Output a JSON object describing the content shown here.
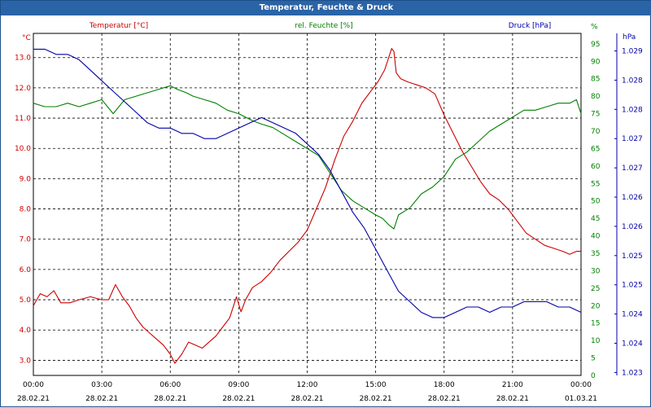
{
  "window": {
    "title": "Temperatur, Feuchte & Druck"
  },
  "colors": {
    "temperature": "#cc0000",
    "humidity": "#008000",
    "pressure": "#0000aa",
    "grid": "#000000",
    "title_bar": "#2a64a6",
    "axis": "#000000"
  },
  "chart_data": {
    "type": "line",
    "title": "Temperatur, Feuchte & Druck",
    "grid": true,
    "x_axis": {
      "ticks": [
        {
          "time": "00:00",
          "date": "28.02.21"
        },
        {
          "time": "03:00",
          "date": "28.02.21"
        },
        {
          "time": "06:00",
          "date": "28.02.21"
        },
        {
          "time": "09:00",
          "date": "28.02.21"
        },
        {
          "time": "12:00",
          "date": "28.02.21"
        },
        {
          "time": "15:00",
          "date": "28.02.21"
        },
        {
          "time": "18:00",
          "date": "28.02.21"
        },
        {
          "time": "21:00",
          "date": "28.02.21"
        },
        {
          "time": "00:00",
          "date": "01.03.21"
        }
      ],
      "range_hours": [
        0,
        24
      ]
    },
    "axes": {
      "temperature": {
        "label": "Temperatur [°C]",
        "unit": "°C",
        "ylim": [
          2.5,
          13.8
        ],
        "ticks": [
          "3.0",
          "4.0",
          "5.0",
          "6.0",
          "7.0",
          "8.0",
          "9.0",
          "10.0",
          "11.0",
          "12.0",
          "13.0"
        ]
      },
      "humidity": {
        "label": "rel. Feuchte [%]",
        "unit": "%",
        "ylim": [
          0,
          98
        ],
        "ticks": [
          "0",
          "5",
          "10",
          "15",
          "20",
          "25",
          "30",
          "35",
          "40",
          "45",
          "50",
          "55",
          "60",
          "65",
          "70",
          "75",
          "80",
          "85",
          "90",
          "95",
          "%"
        ]
      },
      "pressure": {
        "label": "Druck [hPa]",
        "unit": "hPa",
        "ylim": [
          1.023,
          1.0295
        ],
        "ticks": [
          "1.023",
          "1.024",
          "1.024",
          "1.025",
          "1.025",
          "1.026",
          "1.026",
          "1.027",
          "1.027",
          "1.028",
          "1.028",
          "1.029"
        ]
      }
    },
    "series": [
      {
        "name": "Temperatur [°C]",
        "axis": "temperature",
        "x": [
          0,
          0.3,
          0.6,
          0.9,
          1.2,
          1.6,
          2,
          2.5,
          3,
          3.3,
          3.6,
          3.9,
          4.2,
          4.5,
          4.8,
          5.1,
          5.4,
          5.7,
          6,
          6.2,
          6.5,
          6.8,
          7.1,
          7.4,
          7.7,
          8,
          8.3,
          8.6,
          8.9,
          9.1,
          9.3,
          9.6,
          10,
          10.4,
          10.8,
          11.2,
          11.6,
          12,
          12.4,
          12.8,
          13.2,
          13.6,
          14,
          14.4,
          14.8,
          15.1,
          15.4,
          15.7,
          15.8,
          15.9,
          16.1,
          16.4,
          16.8,
          17.2,
          17.6,
          18,
          18.4,
          18.8,
          19.2,
          19.6,
          20,
          20.4,
          20.8,
          21.2,
          21.6,
          22,
          22.4,
          22.8,
          23.2,
          23.5,
          23.8,
          24
        ],
        "y": [
          4.8,
          5.2,
          5.1,
          5.3,
          4.9,
          4.9,
          5.0,
          5.1,
          5.0,
          5.0,
          5.5,
          5.1,
          4.8,
          4.4,
          4.1,
          3.9,
          3.7,
          3.5,
          3.2,
          2.9,
          3.2,
          3.6,
          3.5,
          3.4,
          3.6,
          3.8,
          4.1,
          4.4,
          5.1,
          4.6,
          5.0,
          5.4,
          5.6,
          5.9,
          6.3,
          6.6,
          6.9,
          7.3,
          8.0,
          8.7,
          9.6,
          10.4,
          10.9,
          11.5,
          11.9,
          12.2,
          12.6,
          13.3,
          13.2,
          12.5,
          12.3,
          12.2,
          12.1,
          12.0,
          11.8,
          11.1,
          10.5,
          9.9,
          9.4,
          8.9,
          8.5,
          8.3,
          8.0,
          7.6,
          7.2,
          7.0,
          6.8,
          6.7,
          6.6,
          6.5,
          6.6,
          6.6
        ]
      },
      {
        "name": "rel. Feuchte [%]",
        "axis": "humidity",
        "x": [
          0,
          0.5,
          1,
          1.5,
          2,
          2.5,
          3,
          3.5,
          4,
          4.5,
          5,
          5.5,
          6,
          6.3,
          6.7,
          7,
          7.5,
          8,
          8.5,
          9,
          9.3,
          9.6,
          10,
          10.5,
          11,
          11.5,
          12,
          12.5,
          13,
          13.5,
          14,
          14.5,
          15,
          15.3,
          15.6,
          15.8,
          16,
          16.5,
          17,
          17.5,
          18,
          18.5,
          19,
          19.5,
          20,
          20.5,
          21,
          21.5,
          22,
          22.5,
          23,
          23.5,
          23.8,
          24
        ],
        "y": [
          78,
          77,
          77,
          78,
          77,
          78,
          79,
          75,
          79,
          80,
          81,
          82,
          83,
          82,
          81,
          80,
          79,
          78,
          76,
          75,
          74,
          73,
          72,
          71,
          69,
          67,
          65,
          63,
          58,
          53,
          50,
          48,
          46,
          45,
          43,
          42,
          46,
          48,
          52,
          54,
          57,
          62,
          64,
          67,
          70,
          72,
          74,
          76,
          76,
          77,
          78,
          78,
          79,
          75
        ],
        "y_note": "values in % (humidity axis)"
      },
      {
        "name": "Druck [hPa]",
        "axis": "pressure",
        "x": [
          0,
          0.5,
          1,
          1.5,
          2,
          2.5,
          3,
          3.5,
          4,
          4.5,
          5,
          5.5,
          6,
          6.5,
          7,
          7.5,
          8,
          8.5,
          9,
          9.5,
          10,
          10.5,
          11,
          11.5,
          12,
          12.5,
          13,
          13.5,
          14,
          14.5,
          15,
          15.5,
          16,
          16.5,
          17,
          17.5,
          18,
          18.5,
          19,
          19.5,
          20,
          20.5,
          21,
          21.5,
          22,
          22.5,
          23,
          23.5,
          24
        ],
        "y": [
          1.0292,
          1.0292,
          1.0291,
          1.0291,
          1.029,
          1.0288,
          1.0286,
          1.0284,
          1.0282,
          1.028,
          1.0278,
          1.0277,
          1.0277,
          1.0276,
          1.0276,
          1.0275,
          1.0275,
          1.0276,
          1.0277,
          1.0278,
          1.0279,
          1.0278,
          1.0277,
          1.0276,
          1.0274,
          1.0272,
          1.0269,
          1.0265,
          1.0261,
          1.0258,
          1.0254,
          1.025,
          1.0246,
          1.0244,
          1.0242,
          1.0241,
          1.0241,
          1.0242,
          1.0243,
          1.0243,
          1.0242,
          1.0243,
          1.0243,
          1.0244,
          1.0244,
          1.0244,
          1.0243,
          1.0243,
          1.0242
        ]
      }
    ]
  }
}
